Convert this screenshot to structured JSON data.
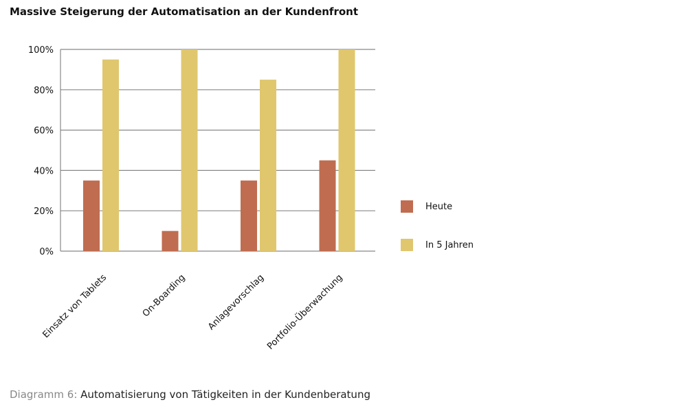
{
  "chart_data": {
    "type": "bar",
    "title": "Massive Steigerung der Automatisation an der Kundenfront",
    "categories": [
      "Einsatz von Tablets",
      "On-Boarding",
      "Anlagevorschlag",
      "Portfolio-Überwachung"
    ],
    "series": [
      {
        "name": "Heute",
        "values": [
          35,
          10,
          35,
          45
        ],
        "color": "#c06c50"
      },
      {
        "name": "In 5 Jahren",
        "values": [
          95,
          100,
          85,
          100
        ],
        "color": "#e0c76e"
      }
    ],
    "ylim": [
      0,
      100
    ],
    "yticks": [
      0,
      20,
      40,
      60,
      80,
      100
    ],
    "ytick_labels": [
      "0%",
      "20%",
      "40%",
      "60%",
      "80%",
      "100%"
    ],
    "grid": true,
    "legend_position": "right"
  },
  "caption": {
    "prefix": "Diagramm 6:",
    "text": " Automatisierung von Tätigkeiten in der Kundenberatung"
  }
}
